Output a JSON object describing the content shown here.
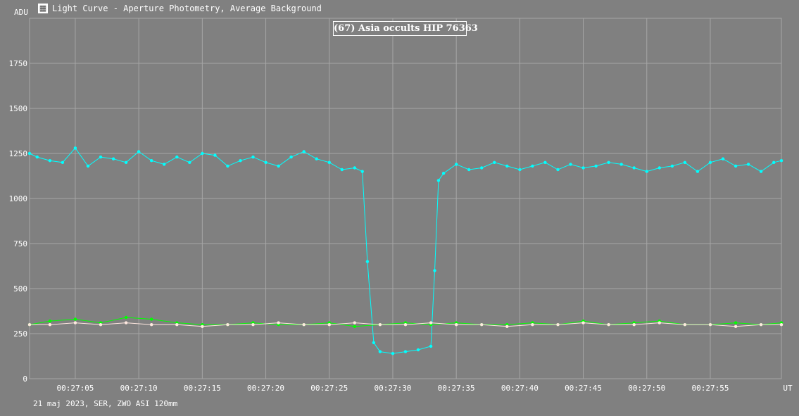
{
  "window": {
    "title": "Light Curve - Aperture Photometry, Average Background",
    "app_icon": "image-icon"
  },
  "colors": {
    "background": "#808080",
    "grid": "#a6a6a6",
    "text": "#ffffff",
    "target": "#00ffff",
    "comparison": "#00ff00",
    "comparison2": "#ffe8e0"
  },
  "footer": {
    "caption": "21 maj 2023, SER, ZWO ASI 120mm"
  },
  "chart_data": {
    "type": "line",
    "title": "(67) Asia occults HIP 76363",
    "ylabel": "ADU",
    "xlabel": "UT",
    "ylim": [
      0,
      2000
    ],
    "yticks": [
      0,
      250,
      500,
      750,
      1000,
      1250,
      1500,
      1750
    ],
    "xlim": [
      "00:27:01.4",
      "00:28:00.6"
    ],
    "xticks": [
      "00:27:05",
      "00:27:10",
      "00:27:15",
      "00:27:20",
      "00:27:25",
      "00:27:30",
      "00:27:35",
      "00:27:40",
      "00:27:45",
      "00:27:50",
      "00:27:55"
    ],
    "grid": true,
    "series": [
      {
        "color": "#00ffff",
        "points": [
          [
            "00:27:01.4",
            1250
          ],
          [
            "00:27:02.0",
            1230
          ],
          [
            "00:27:03.0",
            1210
          ],
          [
            "00:27:04.0",
            1200
          ],
          [
            "00:27:05.0",
            1280
          ],
          [
            "00:27:06.0",
            1180
          ],
          [
            "00:27:07.0",
            1230
          ],
          [
            "00:27:08.0",
            1220
          ],
          [
            "00:27:09.0",
            1200
          ],
          [
            "00:27:10.0",
            1260
          ],
          [
            "00:27:11.0",
            1210
          ],
          [
            "00:27:12.0",
            1190
          ],
          [
            "00:27:13.0",
            1230
          ],
          [
            "00:27:14.0",
            1200
          ],
          [
            "00:27:15.0",
            1250
          ],
          [
            "00:27:16.0",
            1240
          ],
          [
            "00:27:17.0",
            1180
          ],
          [
            "00:27:18.0",
            1210
          ],
          [
            "00:27:19.0",
            1230
          ],
          [
            "00:27:20.0",
            1200
          ],
          [
            "00:27:21.0",
            1180
          ],
          [
            "00:27:22.0",
            1230
          ],
          [
            "00:27:23.0",
            1260
          ],
          [
            "00:27:24.0",
            1220
          ],
          [
            "00:27:25.0",
            1200
          ],
          [
            "00:27:26.0",
            1160
          ],
          [
            "00:27:27.0",
            1170
          ],
          [
            "00:27:27.6",
            1150
          ],
          [
            "00:27:28.0",
            650
          ],
          [
            "00:27:28.5",
            200
          ],
          [
            "00:27:29.0",
            150
          ],
          [
            "00:27:30.0",
            140
          ],
          [
            "00:27:31.0",
            150
          ],
          [
            "00:27:32.0",
            160
          ],
          [
            "00:27:33.0",
            180
          ],
          [
            "00:27:33.3",
            600
          ],
          [
            "00:27:33.6",
            1100
          ],
          [
            "00:27:34.0",
            1140
          ],
          [
            "00:27:35.0",
            1190
          ],
          [
            "00:27:36.0",
            1160
          ],
          [
            "00:27:37.0",
            1170
          ],
          [
            "00:27:38.0",
            1200
          ],
          [
            "00:27:39.0",
            1180
          ],
          [
            "00:27:40.0",
            1160
          ],
          [
            "00:27:41.0",
            1180
          ],
          [
            "00:27:42.0",
            1200
          ],
          [
            "00:27:43.0",
            1160
          ],
          [
            "00:27:44.0",
            1190
          ],
          [
            "00:27:45.0",
            1170
          ],
          [
            "00:27:46.0",
            1180
          ],
          [
            "00:27:47.0",
            1200
          ],
          [
            "00:27:48.0",
            1190
          ],
          [
            "00:27:49.0",
            1170
          ],
          [
            "00:27:50.0",
            1150
          ],
          [
            "00:27:51.0",
            1170
          ],
          [
            "00:27:52.0",
            1180
          ],
          [
            "00:27:53.0",
            1200
          ],
          [
            "00:27:54.0",
            1150
          ],
          [
            "00:27:55.0",
            1200
          ],
          [
            "00:27:56.0",
            1220
          ],
          [
            "00:27:57.0",
            1180
          ],
          [
            "00:27:58.0",
            1190
          ],
          [
            "00:27:59.0",
            1150
          ],
          [
            "00:28:00.0",
            1200
          ],
          [
            "00:28:00.6",
            1210
          ]
        ]
      },
      {
        "color": "#00ff00",
        "points": [
          [
            "00:27:01.4",
            300
          ],
          [
            "00:27:03.0",
            320
          ],
          [
            "00:27:05.0",
            330
          ],
          [
            "00:27:07.0",
            310
          ],
          [
            "00:27:09.0",
            340
          ],
          [
            "00:27:11.0",
            330
          ],
          [
            "00:27:13.0",
            310
          ],
          [
            "00:27:15.0",
            300
          ],
          [
            "00:27:17.0",
            300
          ],
          [
            "00:27:19.0",
            310
          ],
          [
            "00:27:21.0",
            300
          ],
          [
            "00:27:23.0",
            300
          ],
          [
            "00:27:25.0",
            310
          ],
          [
            "00:27:27.0",
            290
          ],
          [
            "00:27:29.0",
            300
          ],
          [
            "00:27:31.0",
            310
          ],
          [
            "00:27:33.0",
            300
          ],
          [
            "00:27:35.0",
            310
          ],
          [
            "00:27:37.0",
            300
          ],
          [
            "00:27:39.0",
            300
          ],
          [
            "00:27:41.0",
            310
          ],
          [
            "00:27:43.0",
            300
          ],
          [
            "00:27:45.0",
            320
          ],
          [
            "00:27:47.0",
            300
          ],
          [
            "00:27:49.0",
            310
          ],
          [
            "00:27:51.0",
            320
          ],
          [
            "00:27:53.0",
            300
          ],
          [
            "00:27:55.0",
            300
          ],
          [
            "00:27:57.0",
            310
          ],
          [
            "00:27:59.0",
            300
          ],
          [
            "00:28:00.6",
            310
          ]
        ]
      },
      {
        "color": "#ffe8e0",
        "points": [
          [
            "00:27:01.4",
            300
          ],
          [
            "00:27:03.0",
            300
          ],
          [
            "00:27:05.0",
            310
          ],
          [
            "00:27:07.0",
            300
          ],
          [
            "00:27:09.0",
            310
          ],
          [
            "00:27:11.0",
            300
          ],
          [
            "00:27:13.0",
            300
          ],
          [
            "00:27:15.0",
            290
          ],
          [
            "00:27:17.0",
            300
          ],
          [
            "00:27:19.0",
            300
          ],
          [
            "00:27:21.0",
            310
          ],
          [
            "00:27:23.0",
            300
          ],
          [
            "00:27:25.0",
            300
          ],
          [
            "00:27:27.0",
            310
          ],
          [
            "00:27:29.0",
            300
          ],
          [
            "00:27:31.0",
            300
          ],
          [
            "00:27:33.0",
            310
          ],
          [
            "00:27:35.0",
            300
          ],
          [
            "00:27:37.0",
            300
          ],
          [
            "00:27:39.0",
            290
          ],
          [
            "00:27:41.0",
            300
          ],
          [
            "00:27:43.0",
            300
          ],
          [
            "00:27:45.0",
            310
          ],
          [
            "00:27:47.0",
            300
          ],
          [
            "00:27:49.0",
            300
          ],
          [
            "00:27:51.0",
            310
          ],
          [
            "00:27:53.0",
            300
          ],
          [
            "00:27:55.0",
            300
          ],
          [
            "00:27:57.0",
            290
          ],
          [
            "00:27:59.0",
            300
          ],
          [
            "00:28:00.6",
            300
          ]
        ]
      }
    ]
  }
}
